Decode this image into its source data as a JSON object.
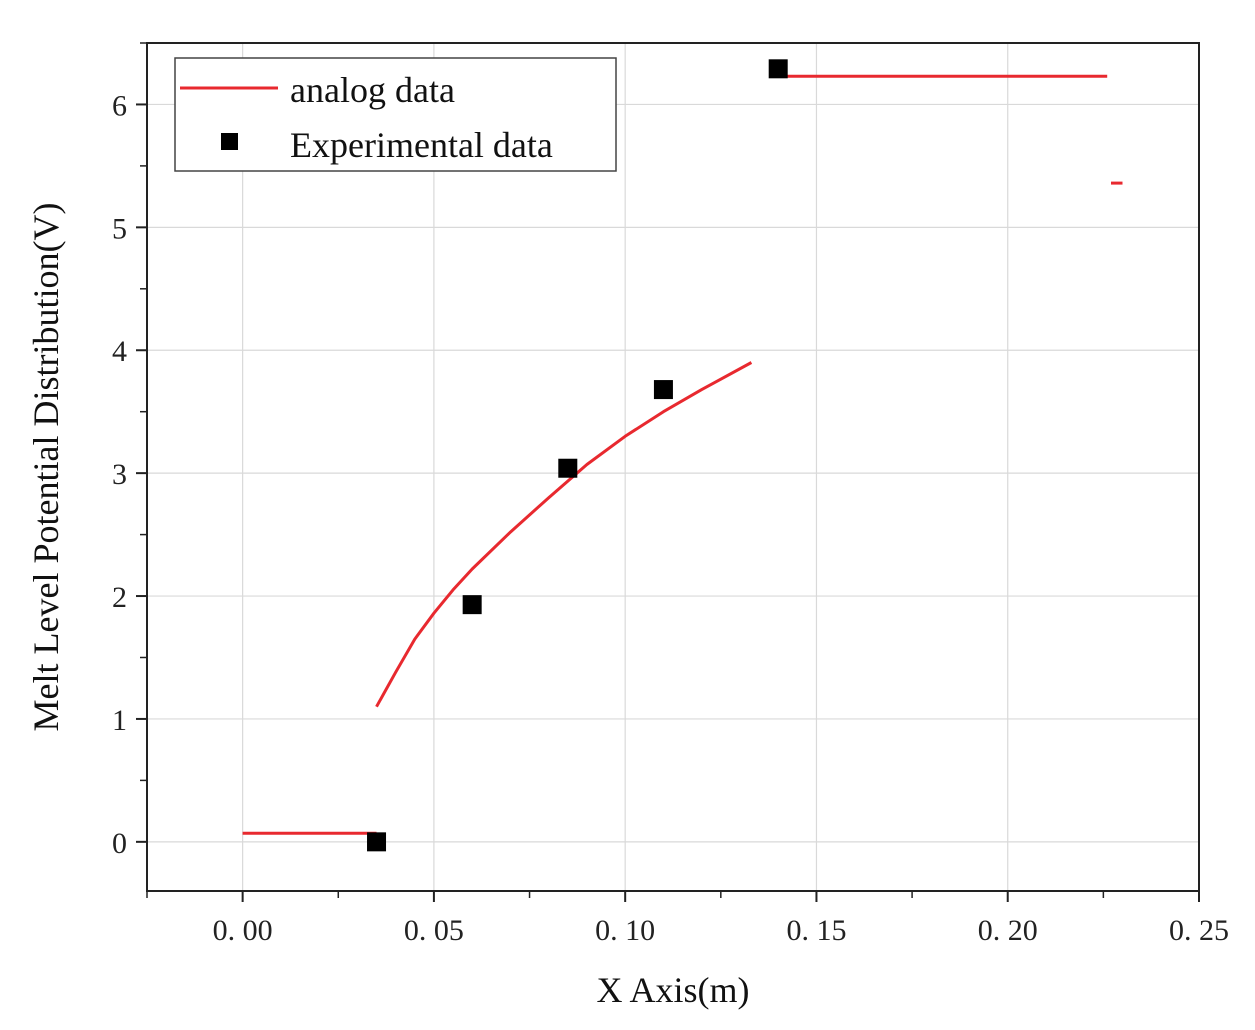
{
  "chart_data": {
    "type": "line",
    "xlabel": "X Axis(m)",
    "ylabel": "Melt Level Potential Distribution(V)",
    "xlim": [
      -0.025,
      0.25
    ],
    "ylim": [
      -0.4,
      6.5
    ],
    "x_ticks": [
      0.0,
      0.05,
      0.1,
      0.15,
      0.2,
      0.25
    ],
    "x_tick_labels": [
      "0. 00",
      "0. 05",
      "0. 10",
      "0. 15",
      "0. 20",
      "0. 25"
    ],
    "y_ticks": [
      0,
      1,
      2,
      3,
      4,
      5,
      6
    ],
    "y_tick_labels": [
      "0",
      "1",
      "2",
      "3",
      "4",
      "5",
      "6"
    ],
    "grid": true,
    "legend_position": "top-left",
    "series": [
      {
        "name": "analog data",
        "style": "line",
        "color": "#e8292f",
        "segments": [
          [
            [
              0.0,
              0.07
            ],
            [
              0.035,
              0.07
            ]
          ],
          [
            [
              0.035,
              1.1
            ],
            [
              0.04,
              1.38
            ],
            [
              0.045,
              1.65
            ],
            [
              0.05,
              1.86
            ],
            [
              0.055,
              2.05
            ],
            [
              0.06,
              2.22
            ],
            [
              0.07,
              2.52
            ],
            [
              0.08,
              2.8
            ],
            [
              0.09,
              3.07
            ],
            [
              0.1,
              3.3
            ],
            [
              0.11,
              3.5
            ],
            [
              0.12,
              3.68
            ],
            [
              0.133,
              3.9
            ]
          ],
          [
            [
              0.14,
              6.23
            ],
            [
              0.226,
              6.23
            ]
          ],
          [
            [
              0.227,
              5.36
            ],
            [
              0.23,
              5.36
            ]
          ]
        ]
      },
      {
        "name": "Experimental data",
        "style": "scatter",
        "marker": "square",
        "color": "#000000",
        "points": [
          [
            0.035,
            0.0
          ],
          [
            0.06,
            1.93
          ],
          [
            0.085,
            3.04
          ],
          [
            0.11,
            3.68
          ],
          [
            0.14,
            6.29
          ]
        ]
      }
    ]
  }
}
